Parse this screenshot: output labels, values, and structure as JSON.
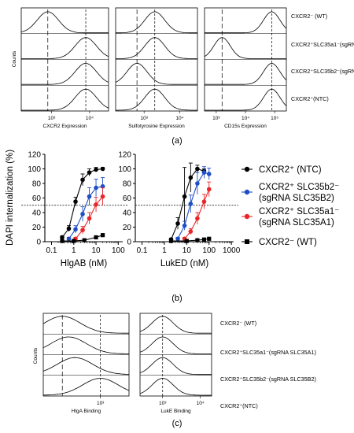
{
  "chart_data": [
    {
      "panel": "(a)",
      "type": "histogram",
      "ylabel": "Counts",
      "rows": [
        "CXCR2⁻ (WT)",
        "CXCR2⁺SLC35a1⁻(sgRNA SLC35A1)",
        "CXCR2⁺SLC35b2⁻(sgRNA SLC35B2)",
        "CXCR2⁺(NTC)"
      ],
      "columns": [
        {
          "xlabel": "CXCR2 Expression",
          "xticks": [
            "10³",
            "10⁴"
          ],
          "peak_log10": [
            2.9,
            3.9,
            3.9,
            3.9
          ]
        },
        {
          "xlabel": "Sulfotyrosine Expression",
          "xticks": [
            "10³",
            "10⁴"
          ],
          "peak_log10": [
            3.3,
            3.3,
            2.8,
            3.3
          ]
        },
        {
          "xlabel": "CD15s Expression",
          "xticks": [
            "10³",
            "10⁴",
            "10⁵"
          ],
          "peak_log10": [
            4.9,
            3.2,
            4.9,
            4.9
          ]
        }
      ]
    },
    {
      "panel": "(b)",
      "type": "line",
      "ylabel": "DAPI internalization (%)",
      "ylim": [
        0,
        120
      ],
      "yticks": [
        "0",
        "20",
        "40",
        "60",
        "80",
        "100",
        "120"
      ],
      "threshold": 50,
      "legend_placement": "right",
      "series": [
        {
          "name": "CXCR2⁺ (NTC)",
          "color": "#000000",
          "marker": "circle"
        },
        {
          "name": "CXCR2⁺ SLC35b2⁻\n(sgRNA SLC35B2)",
          "color": "#1f4fc6",
          "marker": "circle"
        },
        {
          "name": "CXCR2⁺ SLC35a1⁻\n(sgRNA SLC35A1)",
          "color": "#e8262a",
          "marker": "circle"
        },
        {
          "name": "CXCR2⁻ (WT)",
          "color": "#000000",
          "marker": "square"
        }
      ],
      "subplots": [
        {
          "xlabel": "HlgAB (nM)",
          "xscale": "log",
          "xticks": [
            "0.1",
            "1",
            "10",
            "100"
          ],
          "data": [
            {
              "x": [
                0.3,
                0.6,
                1.2,
                2.5,
                5,
                10,
                20
              ],
              "y": [
                6,
                18,
                55,
                85,
                95,
                99,
                100
              ],
              "err": [
                2,
                4,
                6,
                8,
                5,
                3,
                2
              ]
            },
            {
              "x": [
                0.6,
                1.2,
                2.5,
                5,
                10,
                20
              ],
              "y": [
                4,
                17,
                38,
                62,
                74,
                76
              ],
              "err": [
                2,
                5,
                10,
                12,
                12,
                12
              ]
            },
            {
              "x": [
                1.2,
                2.5,
                5,
                10,
                20
              ],
              "y": [
                4,
                16,
                32,
                51,
                62
              ],
              "err": [
                2,
                5,
                8,
                10,
                12
              ]
            },
            {
              "x": [
                0.3,
                1,
                3,
                10,
                20
              ],
              "y": [
                1,
                1,
                2,
                6,
                9
              ],
              "err": [
                0,
                0,
                0,
                1,
                1
              ]
            }
          ]
        },
        {
          "xlabel": "LukED (nM)",
          "xscale": "log",
          "xticks": [
            "0.1",
            "1",
            "10",
            "100",
            "1000"
          ],
          "data": [
            {
              "x": [
                2,
                4,
                8,
                15,
                30,
                60
              ],
              "y": [
                3,
                25,
                62,
                88,
                100,
                97
              ],
              "err": [
                2,
                8,
                40,
                20,
                5,
                3
              ]
            },
            {
              "x": [
                4,
                8,
                15,
                30,
                60,
                100
              ],
              "y": [
                4,
                22,
                52,
                80,
                95,
                93
              ],
              "err": [
                2,
                6,
                12,
                15,
                8,
                8
              ]
            },
            {
              "x": [
                8,
                15,
                30,
                60,
                100
              ],
              "y": [
                4,
                14,
                32,
                55,
                72
              ],
              "err": [
                2,
                4,
                8,
                10,
                10
              ]
            },
            {
              "x": [
                2,
                10,
                30,
                60,
                100
              ],
              "y": [
                1,
                1,
                2,
                3,
                4
              ],
              "err": [
                0,
                0,
                0,
                0,
                1
              ]
            }
          ]
        }
      ]
    },
    {
      "panel": "(c)",
      "type": "histogram",
      "ylabel": "Counts",
      "rows": [
        "CXCR2⁻ (WT)",
        "CXCR2⁺SLC35a1⁻(sgRNA SLC35A1)",
        "CXCR2⁺SLC35b2⁻(sgRNA SLC35B2)",
        "CXCR2⁺(NTC)"
      ],
      "columns": [
        {
          "xlabel": "HlgA Binding",
          "xticks": [
            "10³"
          ],
          "peak_log10": [
            2.4,
            2.5,
            2.6,
            3.0
          ]
        },
        {
          "xlabel": "LukE Binding",
          "xticks": [
            "10³",
            "10⁴"
          ],
          "peak_log10": [
            3.0,
            3.0,
            3.0,
            3.0
          ]
        }
      ]
    }
  ],
  "panel_labels": {
    "a": "(a)",
    "b": "(b)",
    "c": "(c)"
  }
}
